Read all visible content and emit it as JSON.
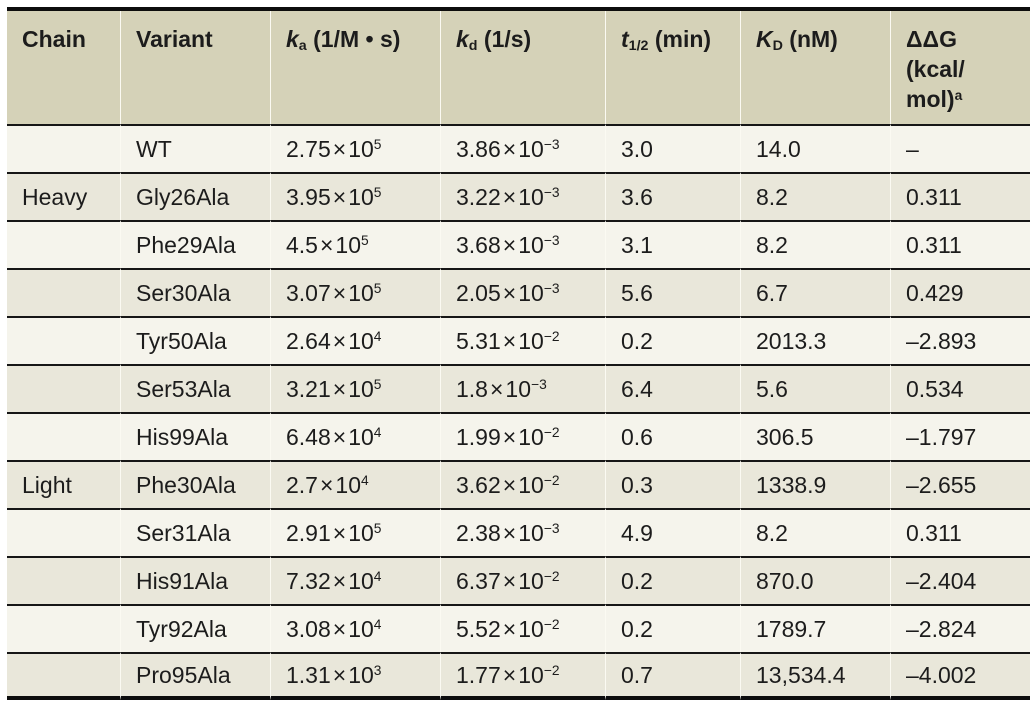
{
  "colors": {
    "header_bg": "#d5d2b8",
    "row_light": "#f5f4ec",
    "row_dark": "#e9e7da",
    "rule": "#161616",
    "border": "#0d0d0d",
    "text": "#1c1c1c",
    "column_gap_line": "#fbfaf2"
  },
  "table": {
    "columns": [
      {
        "id": "chain",
        "label": "Chain"
      },
      {
        "id": "variant",
        "label": "Variant"
      },
      {
        "id": "ka",
        "symbol": "k",
        "sub": "a",
        "unit": "(1/M • s)"
      },
      {
        "id": "kd",
        "symbol": "k",
        "sub": "d",
        "unit": "(1/s)"
      },
      {
        "id": "t12",
        "symbol": "t",
        "sub": "1/2",
        "unit": "(min)"
      },
      {
        "id": "kD",
        "symbol": "K",
        "sub": "D",
        "unit": "(nM)"
      },
      {
        "id": "ddg",
        "label_lines": [
          "ΔΔG",
          "(kcal/",
          "mol)"
        ],
        "sup": "a"
      }
    ],
    "rows": [
      {
        "chain": "",
        "variant": "WT",
        "ka": "2.75×10^5",
        "kd": "3.86×10^−3",
        "t12": "3.0",
        "kD": "14.0",
        "ddg": "–"
      },
      {
        "chain": "Heavy",
        "variant": "Gly26Ala",
        "ka": "3.95×10^5",
        "kd": "3.22×10^−3",
        "t12": "3.6",
        "kD": "8.2",
        "ddg": "0.311"
      },
      {
        "chain": "",
        "variant": "Phe29Ala",
        "ka": "4.5×10^5",
        "kd": "3.68×10^−3",
        "t12": "3.1",
        "kD": "8.2",
        "ddg": "0.311"
      },
      {
        "chain": "",
        "variant": "Ser30Ala",
        "ka": "3.07×10^5",
        "kd": "2.05×10^−3",
        "t12": "5.6",
        "kD": "6.7",
        "ddg": "0.429"
      },
      {
        "chain": "",
        "variant": "Tyr50Ala",
        "ka": "2.64×10^4",
        "kd": "5.31×10^−2",
        "t12": "0.2",
        "kD": "2013.3",
        "ddg": "–2.893"
      },
      {
        "chain": "",
        "variant": "Ser53Ala",
        "ka": "3.21×10^5",
        "kd": "1.8×10^−3",
        "t12": "6.4",
        "kD": "5.6",
        "ddg": "0.534"
      },
      {
        "chain": "",
        "variant": "His99Ala",
        "ka": "6.48×10^4",
        "kd": "1.99×10^−2",
        "t12": "0.6",
        "kD": "306.5",
        "ddg": "–1.797"
      },
      {
        "chain": "Light",
        "variant": "Phe30Ala",
        "ka": "2.7×10^4",
        "kd": "3.62×10^−2",
        "t12": "0.3",
        "kD": "1338.9",
        "ddg": "–2.655"
      },
      {
        "chain": "",
        "variant": "Ser31Ala",
        "ka": "2.91×10^5",
        "kd": "2.38×10^−3",
        "t12": "4.9",
        "kD": "8.2",
        "ddg": "0.311"
      },
      {
        "chain": "",
        "variant": "His91Ala",
        "ka": "7.32×10^4",
        "kd": "6.37×10^−2",
        "t12": "0.2",
        "kD": "870.0",
        "ddg": "–2.404"
      },
      {
        "chain": "",
        "variant": "Tyr92Ala",
        "ka": "3.08×10^4",
        "kd": "5.52×10^−2",
        "t12": "0.2",
        "kD": "1789.7",
        "ddg": "–2.824"
      },
      {
        "chain": "",
        "variant": "Pro95Ala",
        "ka": "1.31×10^3",
        "kd": "1.77×10^−2",
        "t12": "0.7",
        "kD": "13,534.4",
        "ddg": "–4.002"
      }
    ]
  }
}
